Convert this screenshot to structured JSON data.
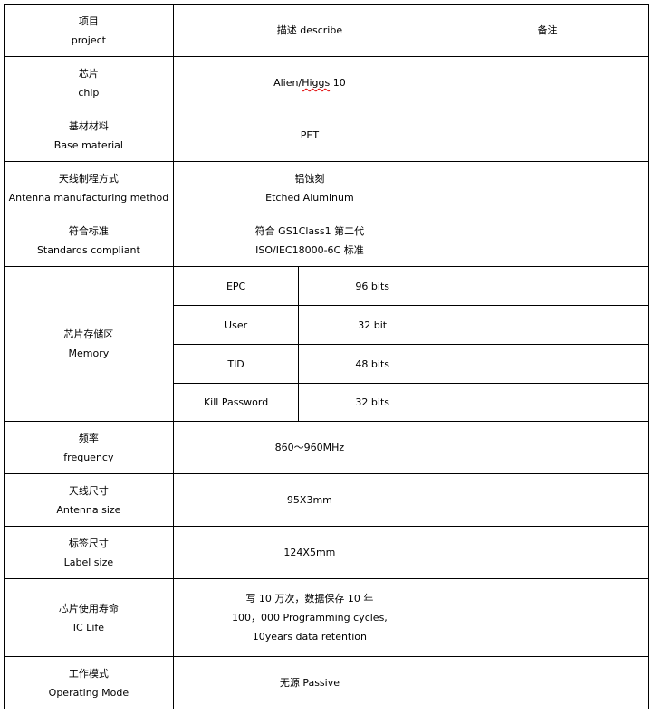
{
  "header": {
    "item_zh": "项目",
    "item_en": "project",
    "describe": "描述 describe",
    "notes": "备注"
  },
  "rows": {
    "chip": {
      "zh": "芯片",
      "en": "chip",
      "value_pre": "Alien/",
      "value_misspelled": "Higgs",
      "value_post": " 10",
      "note": ""
    },
    "base": {
      "zh": "基材材料",
      "en": "Base material",
      "value": "PET",
      "note": ""
    },
    "antenna_method": {
      "zh": "天线制程方式",
      "en": "Antenna manufacturing method",
      "value_zh": "铝蚀刻",
      "value_en": "Etched Aluminum",
      "note": ""
    },
    "standards": {
      "zh": "符合标准",
      "en": "Standards compliant",
      "value_1": "符合 GS1Class1 第二代",
      "value_2": "ISO/IEC18000-6C 标准",
      "note": ""
    },
    "memory": {
      "zh": "芯片存储区",
      "en": "Memory",
      "sub": [
        {
          "name": "EPC",
          "value": "96 bits"
        },
        {
          "name": "User",
          "value": "32 bit"
        },
        {
          "name": "TID",
          "value": "48 bits"
        },
        {
          "name": "Kill Password",
          "value": "32 bits"
        }
      ]
    },
    "frequency": {
      "zh": "频率",
      "en": "frequency",
      "value": "860～960MHz"
    },
    "antenna_size": {
      "zh": "天线尺寸",
      "en": "Antenna size",
      "value": "95X3mm"
    },
    "label_size": {
      "zh": "标签尺寸",
      "en": "Label size",
      "value": "124X5mm"
    },
    "ic_life": {
      "zh": "芯片使用寿命",
      "en": "IC Life",
      "value_1": "写 10 万次，数据保存 10 年",
      "value_2": "100，000 Programming cycles,",
      "value_3": "10years data retention"
    },
    "mode": {
      "zh": "工作模式",
      "en": "Operating Mode",
      "value": "无源 Passive"
    }
  }
}
